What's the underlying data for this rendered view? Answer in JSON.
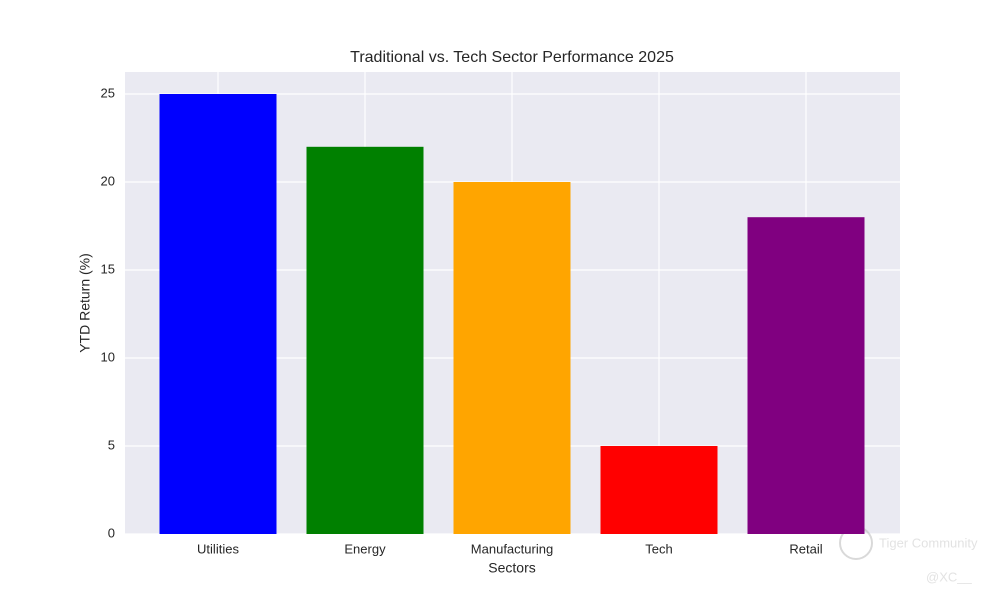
{
  "chart_data": {
    "type": "bar",
    "title": "Traditional vs. Tech Sector Performance 2025",
    "x_label": "Sectors",
    "y_label": "YTD Return (%)",
    "categories": [
      "Utilities",
      "Energy",
      "Manufacturing",
      "Tech",
      "Retail"
    ],
    "values": [
      25,
      22,
      20,
      5,
      18
    ],
    "colors": [
      "#0000ff",
      "#008000",
      "#ffa500",
      "#ff0000",
      "#800080"
    ],
    "ylim": [
      0,
      26.25
    ],
    "yticks": [
      0,
      5,
      10,
      15,
      20,
      25
    ],
    "grid": true
  },
  "watermark": {
    "brand": "Tiger Community",
    "user": "@XC__"
  }
}
